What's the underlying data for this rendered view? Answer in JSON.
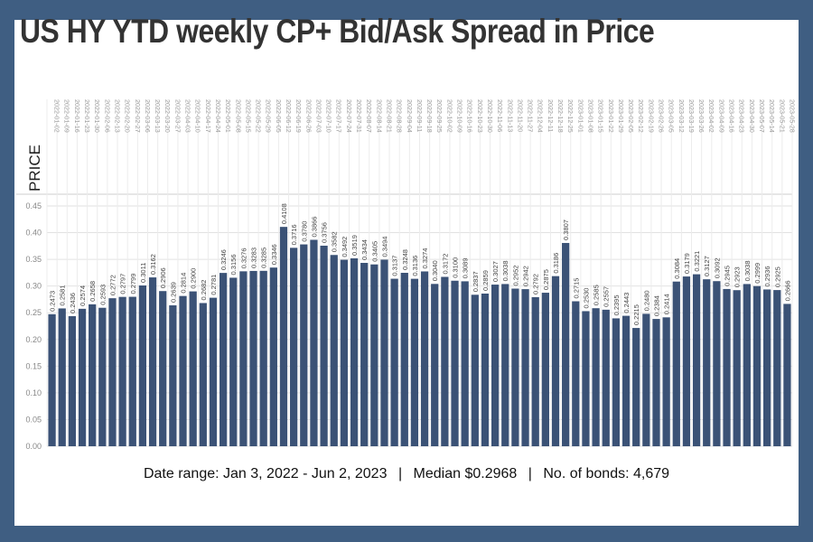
{
  "title": "US HY YTD weekly CP+ Bid/Ask Spread in Price",
  "footer": {
    "date_range": "Date range: Jan 3, 2022 - Jun 2, 2023",
    "separator": "|",
    "median": "Median $0.2968",
    "bonds": "No. of bonds: 4,679"
  },
  "colors": {
    "background": "#3f5e82",
    "bar": "#3b5276",
    "panel": "#ffffff",
    "grid": "#e2e2e2"
  },
  "chart_data": {
    "type": "bar",
    "ylabel": "PRICE",
    "ylim": [
      0,
      0.45
    ],
    "yticks": [
      "0.00",
      "0.05",
      "0.10",
      "0.15",
      "0.20",
      "0.25",
      "0.30",
      "0.35",
      "0.40",
      "0.45"
    ],
    "grid": true,
    "categories": [
      "2022-01-02",
      "2022-01-09",
      "2022-01-16",
      "2022-01-23",
      "2022-01-30",
      "2022-02-06",
      "2022-02-13",
      "2022-02-20",
      "2022-02-27",
      "2022-03-06",
      "2022-03-13",
      "2022-03-20",
      "2022-03-27",
      "2022-04-03",
      "2022-04-10",
      "2022-04-17",
      "2022-04-24",
      "2022-05-01",
      "2022-05-08",
      "2022-05-15",
      "2022-05-22",
      "2022-05-29",
      "2022-06-05",
      "2022-06-12",
      "2022-06-19",
      "2022-06-26",
      "2022-07-03",
      "2022-07-10",
      "2022-07-17",
      "2022-07-24",
      "2022-07-31",
      "2022-08-07",
      "2022-08-14",
      "2022-08-21",
      "2022-08-28",
      "2022-09-04",
      "2022-09-11",
      "2022-09-18",
      "2022-09-25",
      "2022-10-02",
      "2022-10-09",
      "2022-10-16",
      "2022-10-23",
      "2022-10-30",
      "2022-11-06",
      "2022-11-13",
      "2022-11-20",
      "2022-11-27",
      "2022-12-04",
      "2022-12-11",
      "2022-12-18",
      "2022-12-25",
      "2023-01-01",
      "2023-01-08",
      "2023-01-15",
      "2023-01-22",
      "2023-01-29",
      "2023-02-05",
      "2023-02-12",
      "2023-02-19",
      "2023-02-26",
      "2023-03-05",
      "2023-03-12",
      "2023-03-19",
      "2023-03-26",
      "2023-04-02",
      "2023-04-09",
      "2023-04-16",
      "2023-04-23",
      "2023-04-30",
      "2023-05-07",
      "2023-05-14",
      "2023-05-21",
      "2023-05-28"
    ],
    "values": [
      0.2473,
      0.2581,
      0.2436,
      0.2574,
      0.2658,
      0.2593,
      0.2772,
      0.2797,
      0.2799,
      0.3011,
      0.3162,
      0.2906,
      0.2639,
      0.2814,
      0.29,
      0.2682,
      0.2781,
      0.3246,
      0.3156,
      0.3276,
      0.3283,
      0.3285,
      0.3346,
      0.4108,
      0.3716,
      0.378,
      0.3866,
      0.3756,
      0.3582,
      0.3492,
      0.3519,
      0.3434,
      0.3405,
      0.3494,
      0.3137,
      0.3248,
      0.3136,
      0.3274,
      0.304,
      0.3172,
      0.31,
      0.3089,
      0.2837,
      0.2859,
      0.3027,
      0.3038,
      0.2952,
      0.2942,
      0.2792,
      0.2875,
      0.3186,
      0.3807,
      0.2715,
      0.253,
      0.2585,
      0.2557,
      0.2395,
      0.2443,
      0.2215,
      0.248,
      0.2384,
      0.2414,
      0.3084,
      0.3179,
      0.3221,
      0.3127,
      0.3092,
      0.2945,
      0.2923,
      0.3038,
      0.2999,
      0.2936,
      0.2925,
      0.2666
    ],
    "labels": [
      "0.2473",
      "0.2581",
      "0.2436",
      "0.2574",
      "0.2658",
      "0.2593",
      "0.2772",
      "0.2797",
      "0.2799",
      "0.3011",
      "0.3162",
      "0.2906",
      "0.2639",
      "0.2814",
      "0.2900",
      "0.2682",
      "0.2781",
      "0.3246",
      "0.3156",
      "0.3276",
      "0.3283",
      "0.3285",
      "0.3346",
      "0.4108",
      "0.3716",
      "0.3780",
      "0.3866",
      "0.3756",
      "0.3582",
      "0.3492",
      "0.3519",
      "0.3434",
      "0.3405",
      "0.3494",
      "0.3137",
      "0.3248",
      "0.3136",
      "0.3274",
      "0.3040",
      "0.3172",
      "0.3100",
      "0.3089",
      "0.2837",
      "0.2859",
      "0.3027",
      "0.3038",
      "0.2952",
      "0.2942",
      "0.2792",
      "0.2875",
      "0.3186",
      "0.3807",
      "0.2715",
      "0.2530",
      "0.2585",
      "0.2557",
      "0.2395",
      "0.2443",
      "0.2215",
      "0.2480",
      "0.2384",
      "0.2414",
      "0.3084",
      "0.3179",
      "0.3221",
      "0.3127",
      "0.3092",
      "0.2945",
      "0.2923",
      "0.3038",
      "0.2999",
      "0.2936",
      "0.2925",
      "0.2666"
    ]
  }
}
